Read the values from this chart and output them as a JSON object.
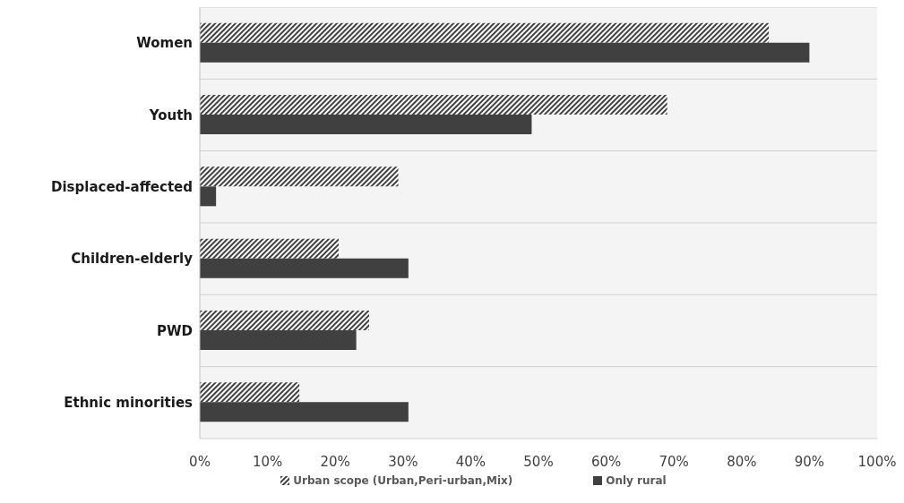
{
  "chart_data": {
    "type": "bar",
    "orientation": "horizontal",
    "categories": [
      "Women",
      "Youth",
      "Displaced-affected",
      "Children-elderly",
      "PWD",
      "Ethnic minorities"
    ],
    "series": [
      {
        "name": "Urban scope (Urban,Peri-urban,Mix)",
        "color": "#404040",
        "values": [
          84,
          69,
          29.3,
          20.5,
          25,
          14.7
        ]
      },
      {
        "name": "Only rural",
        "color": "#404040",
        "values": [
          90,
          49,
          2.4,
          30.8,
          23.1,
          30.8
        ]
      }
    ],
    "xlim": [
      0,
      100
    ],
    "xticks": [
      {
        "value": 0,
        "label": "0%"
      },
      {
        "value": 10,
        "label": "10%"
      },
      {
        "value": 20,
        "label": "20%"
      },
      {
        "value": 30,
        "label": "30%"
      },
      {
        "value": 40,
        "label": "40%"
      },
      {
        "value": 50,
        "label": "50%"
      },
      {
        "value": 60,
        "label": "60%"
      },
      {
        "value": 70,
        "label": "70%"
      },
      {
        "value": 80,
        "label": "80%"
      },
      {
        "value": 90,
        "label": "90%"
      },
      {
        "value": 100,
        "label": "100%"
      }
    ],
    "grid": "y",
    "legend": "bottom"
  }
}
